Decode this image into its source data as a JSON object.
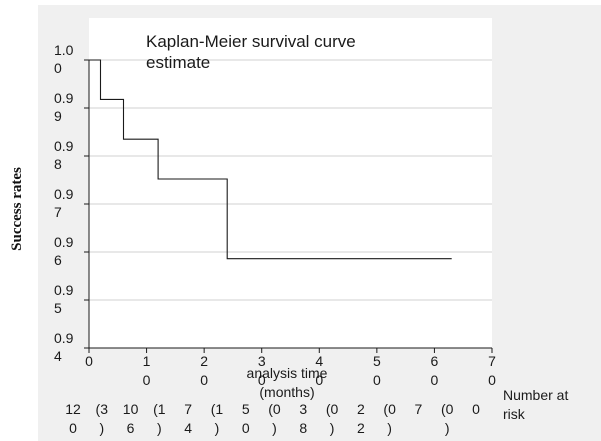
{
  "chart_data": {
    "type": "line",
    "step": true,
    "title_lines": [
      "Kaplan-Meier survival curve",
      "estimate"
    ],
    "xlabel_lines": [
      "analysis time",
      "(months)"
    ],
    "ylabel": "Success rates",
    "xlim": [
      0,
      70
    ],
    "ylim": [
      0.94,
      1.0
    ],
    "grid": true,
    "x_tick_values": [
      0,
      10,
      20,
      30,
      40,
      50,
      60,
      70
    ],
    "x_tick_label_lines": [
      [
        "0"
      ],
      [
        "1",
        "0"
      ],
      [
        "2",
        "0"
      ],
      [
        "3",
        "0"
      ],
      [
        "4",
        "0"
      ],
      [
        "5",
        "0"
      ],
      [
        "6",
        "0"
      ],
      [
        "7",
        "0"
      ]
    ],
    "y_tick_values": [
      1.0,
      0.99,
      0.98,
      0.97,
      0.96,
      0.95,
      0.94
    ],
    "y_tick_label_lines": [
      [
        "1.0",
        "0"
      ],
      [
        "0.9",
        "9"
      ],
      [
        "0.9",
        "8"
      ],
      [
        "0.9",
        "7"
      ],
      [
        "0.9",
        "6"
      ],
      [
        "0.9",
        "5"
      ],
      [
        "0.9",
        "4"
      ]
    ],
    "series": [
      {
        "x": [
          0,
          2,
          2,
          6,
          6,
          12,
          12,
          24,
          24,
          63
        ],
        "y": [
          1.0,
          1.0,
          0.9918,
          0.9918,
          0.9835,
          0.9835,
          0.9752,
          0.9752,
          0.9586,
          0.9586
        ]
      }
    ],
    "number_at_risk": {
      "label_lines": [
        "Number at",
        "risk"
      ],
      "at_risk_lines": [
        [
          "12",
          "0"
        ],
        [
          "10",
          "6"
        ],
        [
          "7",
          "4"
        ],
        [
          "5",
          "0"
        ],
        [
          "3",
          "8"
        ],
        [
          "2",
          "2"
        ],
        [
          "7",
          ""
        ],
        [
          "0",
          ""
        ]
      ],
      "censored_lines": [
        [
          "(3",
          ")"
        ],
        [
          "(1",
          ")"
        ],
        [
          "(1",
          ")"
        ],
        [
          "(0",
          ")"
        ],
        [
          "(0",
          ")"
        ],
        [
          "(0",
          ")"
        ],
        [
          "(0",
          ")"
        ]
      ]
    }
  }
}
